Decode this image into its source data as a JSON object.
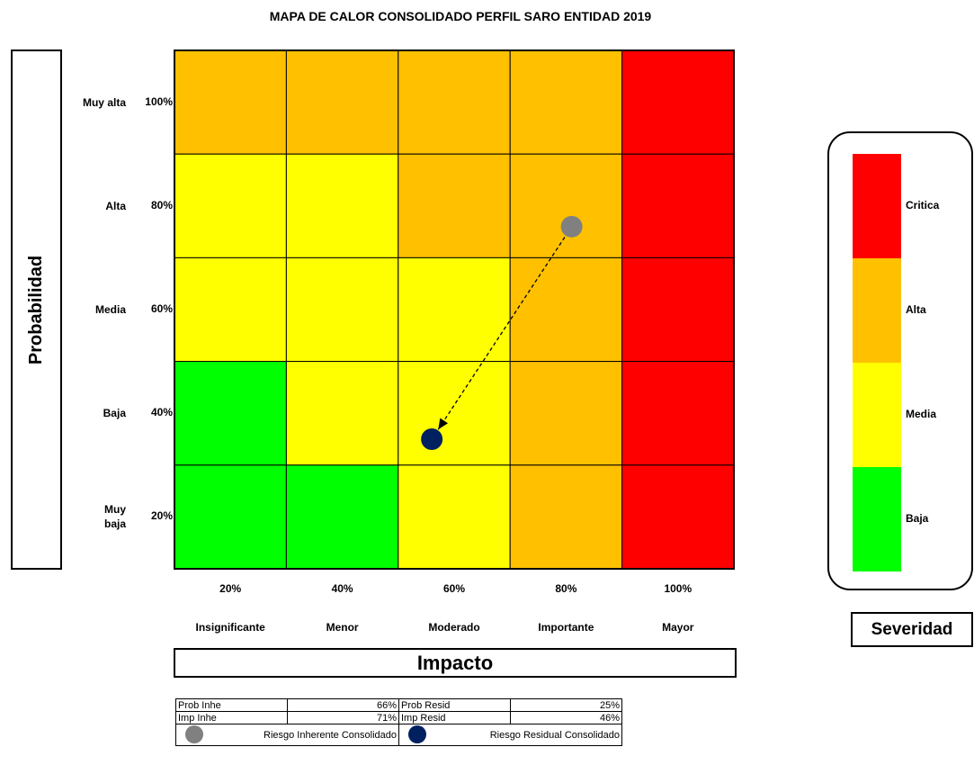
{
  "chart_data": {
    "type": "heatmap",
    "title": "MAPA DE CALOR CONSOLIDADO PERFIL SARO ENTIDAD 2019",
    "y_label": "Probabilidad",
    "x_label": "Impacto",
    "y_categories": [
      "Muy alta",
      "Alta",
      "Media",
      "Baja",
      "Muy baja"
    ],
    "y_percent_labels": [
      "100%",
      "80%",
      "60%",
      "40%",
      "20%"
    ],
    "x_categories": [
      "Insignificante",
      "Menor",
      "Moderado",
      "Importante",
      "Mayor"
    ],
    "x_percent_labels": [
      "20%",
      "40%",
      "60%",
      "80%",
      "100%"
    ],
    "xlim": [
      0,
      100
    ],
    "ylim": [
      0,
      100
    ],
    "cells": [
      [
        "Alta",
        "Alta",
        "Alta",
        "Alta",
        "Critica"
      ],
      [
        "Media",
        "Media",
        "Alta",
        "Alta",
        "Critica"
      ],
      [
        "Media",
        "Media",
        "Media",
        "Alta",
        "Critica"
      ],
      [
        "Baja",
        "Media",
        "Media",
        "Alta",
        "Critica"
      ],
      [
        "Baja",
        "Baja",
        "Media",
        "Alta",
        "Critica"
      ]
    ],
    "legend_title": "Severidad",
    "severity": [
      {
        "name": "Critica",
        "color": "#ff0000"
      },
      {
        "name": "Alta",
        "color": "#ffc000"
      },
      {
        "name": "Media",
        "color": "#ffff00"
      },
      {
        "name": "Baja",
        "color": "#00ff00"
      }
    ],
    "series": [
      {
        "name": "Riesgo Inherente Consolidado",
        "color": "#808080",
        "x": 71,
        "y": 66
      },
      {
        "name": "Riesgo Residual Consolidado",
        "color": "#002060",
        "x": 46,
        "y": 25
      }
    ],
    "summary_table": {
      "rows": [
        [
          "Prob Inhe",
          "66%",
          "Prob Resid",
          "25%"
        ],
        [
          "Imp Inhe",
          "71%",
          "Imp Resid",
          "46%"
        ]
      ]
    }
  }
}
